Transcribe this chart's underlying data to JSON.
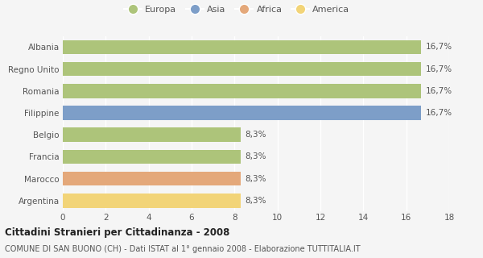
{
  "categories": [
    "Albania",
    "Regno Unito",
    "Romania",
    "Filippine",
    "Belgio",
    "Francia",
    "Marocco",
    "Argentina"
  ],
  "values": [
    16.7,
    16.7,
    16.7,
    16.7,
    8.3,
    8.3,
    8.3,
    8.3
  ],
  "labels": [
    "16,7%",
    "16,7%",
    "16,7%",
    "16,7%",
    "8,3%",
    "8,3%",
    "8,3%",
    "8,3%"
  ],
  "colors": [
    "#adc47a",
    "#adc47a",
    "#adc47a",
    "#7d9ec8",
    "#adc47a",
    "#adc47a",
    "#e4a87a",
    "#f2d478"
  ],
  "legend": [
    "Europa",
    "Asia",
    "Africa",
    "America"
  ],
  "legend_colors": [
    "#adc47a",
    "#7d9ec8",
    "#e4a87a",
    "#f2d478"
  ],
  "xlim": [
    0,
    18
  ],
  "xticks": [
    0,
    2,
    4,
    6,
    8,
    10,
    12,
    14,
    16,
    18
  ],
  "title": "Cittadini Stranieri per Cittadinanza - 2008",
  "subtitle": "COMUNE DI SAN BUONO (CH) - Dati ISTAT al 1° gennaio 2008 - Elaborazione TUTTITALIA.IT",
  "bg_color": "#f5f5f5",
  "bar_height": 0.65,
  "label_fontsize": 7.5,
  "title_fontsize": 8.5,
  "subtitle_fontsize": 7,
  "tick_fontsize": 7.5,
  "legend_fontsize": 8
}
